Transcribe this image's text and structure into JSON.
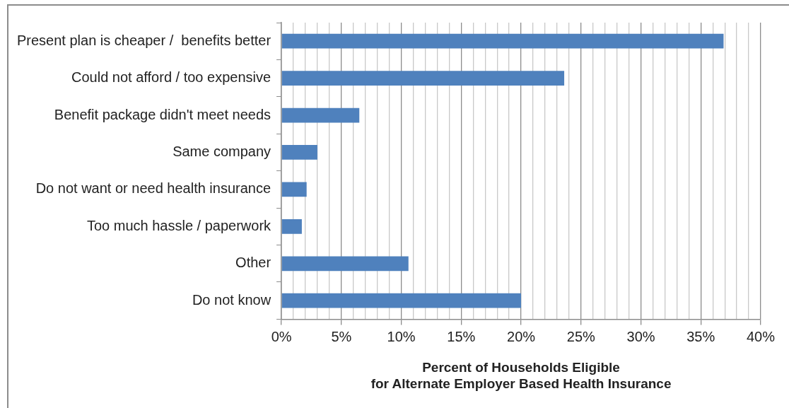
{
  "chart_data": {
    "type": "bar",
    "orientation": "horizontal",
    "categories": [
      "Present plan is cheaper /  benefits better",
      "Could not afford / too expensive",
      "Benefit package didn't meet needs",
      "Same company",
      "Do not want or need health insurance",
      "Too much hassle / paperwork",
      "Other",
      "Do not know"
    ],
    "values": [
      36.9,
      23.6,
      6.5,
      3.0,
      2.1,
      1.7,
      10.6,
      20.0
    ],
    "color": "#4f81bd",
    "xlabel": "Percent of Households Eligible\nfor Alternate Employer Based Health Insurance",
    "xlim": [
      0,
      40
    ],
    "xticks": [
      {
        "value": 0,
        "label": "0%"
      },
      {
        "value": 1,
        "label": null
      },
      {
        "value": 2,
        "label": null
      },
      {
        "value": 3,
        "label": null
      },
      {
        "value": 4,
        "label": null
      },
      {
        "value": 5,
        "label": "5%"
      },
      {
        "value": 6,
        "label": null
      },
      {
        "value": 7,
        "label": null
      },
      {
        "value": 8,
        "label": null
      },
      {
        "value": 9,
        "label": null
      },
      {
        "value": 10,
        "label": "10%"
      },
      {
        "value": 11,
        "label": null
      },
      {
        "value": 12,
        "label": null
      },
      {
        "value": 13,
        "label": null
      },
      {
        "value": 14,
        "label": null
      },
      {
        "value": 15,
        "label": "15%"
      },
      {
        "value": 16,
        "label": null
      },
      {
        "value": 17,
        "label": null
      },
      {
        "value": 18,
        "label": null
      },
      {
        "value": 19,
        "label": null
      },
      {
        "value": 20,
        "label": "20%"
      },
      {
        "value": 21,
        "label": null
      },
      {
        "value": 22,
        "label": null
      },
      {
        "value": 23,
        "label": null
      },
      {
        "value": 24,
        "label": null
      },
      {
        "value": 25,
        "label": "25%"
      },
      {
        "value": 26,
        "label": null
      },
      {
        "value": 27,
        "label": null
      },
      {
        "value": 28,
        "label": null
      },
      {
        "value": 29,
        "label": null
      },
      {
        "value": 30,
        "label": "30%"
      },
      {
        "value": 31,
        "label": null
      },
      {
        "value": 32,
        "label": null
      },
      {
        "value": 33,
        "label": null
      },
      {
        "value": 34,
        "label": null
      },
      {
        "value": 35,
        "label": "35%"
      },
      {
        "value": 36,
        "label": null
      },
      {
        "value": 37,
        "label": null
      },
      {
        "value": 38,
        "label": null
      },
      {
        "value": 39,
        "label": null
      },
      {
        "value": 40,
        "label": "40%"
      }
    ],
    "grid": "x"
  }
}
